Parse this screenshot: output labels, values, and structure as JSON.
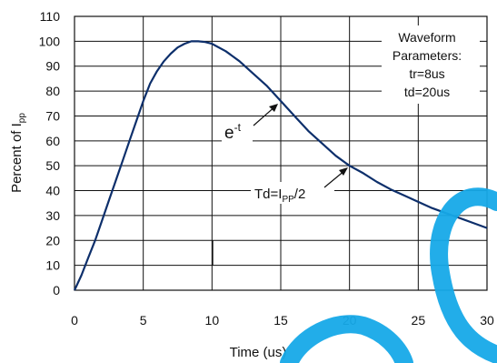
{
  "chart_data": {
    "type": "line",
    "xlabel": "Time (us)",
    "ylabel": {
      "main": "Percent of I",
      "sub": "pp"
    },
    "xlim": [
      0,
      30
    ],
    "ylim": [
      0,
      110
    ],
    "x_ticks": [
      0,
      5,
      10,
      15,
      20,
      25,
      30
    ],
    "y_ticks": [
      0,
      10,
      20,
      30,
      40,
      50,
      60,
      70,
      80,
      90,
      100,
      110
    ],
    "grid": true,
    "series": [
      {
        "color": "#0d2f6b",
        "x": [
          0,
          0.5,
          1,
          1.5,
          2,
          2.5,
          3,
          3.5,
          4,
          4.5,
          5,
          5.5,
          6,
          6.5,
          7,
          7.5,
          8,
          8.5,
          9,
          9.5,
          10,
          11,
          12,
          13,
          14,
          15,
          16,
          17,
          18,
          19,
          20,
          21,
          22,
          23,
          24,
          25,
          26,
          27,
          28,
          29,
          30
        ],
        "y": [
          0,
          6,
          13,
          20,
          28,
          36,
          44,
          52,
          60,
          68,
          76,
          83,
          88,
          92,
          95,
          97.5,
          99,
          100,
          100,
          99.7,
          99,
          96,
          92,
          87,
          82,
          76,
          70,
          64,
          59,
          54,
          50,
          47,
          43.5,
          40.5,
          38,
          35.5,
          33,
          31,
          29,
          27,
          25
        ]
      }
    ],
    "legend_box": {
      "position": "top-right",
      "lines": [
        "Waveform",
        "Parameters:",
        "tr=8us",
        "td=20us"
      ]
    },
    "annotations": [
      {
        "id": "exp",
        "base": "e",
        "sup": "-t",
        "target": [
          15,
          75
        ]
      },
      {
        "id": "td",
        "text_main": "Td=I",
        "text_sub": "PP",
        "text_tail": "/2",
        "target": [
          20,
          50
        ]
      }
    ],
    "marker_x": 10.05,
    "marker_range": [
      10,
      20
    ],
    "watermark_color": "#16a9e8"
  }
}
